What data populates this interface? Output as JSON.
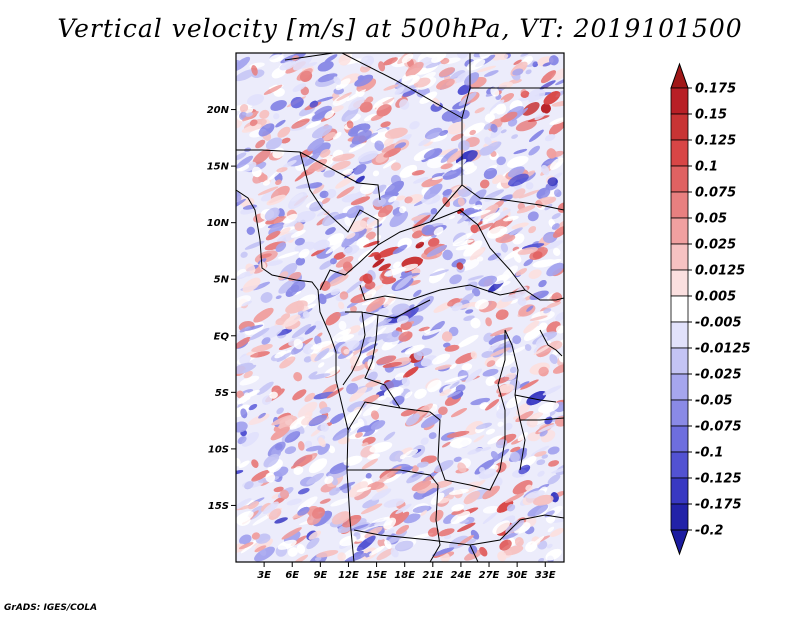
{
  "title": "Vertical velocity [m/s] at 500hPa, VT: 2019101500",
  "credit": "GrADS: IGES/COLA",
  "map": {
    "lon_range": [
      0,
      35
    ],
    "lat_range": [
      -20,
      25
    ],
    "lat_ticks": [
      {
        "lat": 20,
        "label": "20N"
      },
      {
        "lat": 15,
        "label": "15N"
      },
      {
        "lat": 10,
        "label": "10N"
      },
      {
        "lat": 5,
        "label": "5N"
      },
      {
        "lat": 0,
        "label": "EQ"
      },
      {
        "lat": -5,
        "label": "5S"
      },
      {
        "lat": -10,
        "label": "10S"
      },
      {
        "lat": -15,
        "label": "15S"
      }
    ],
    "lon_ticks": [
      {
        "lon": 3,
        "label": "3E"
      },
      {
        "lon": 6,
        "label": "6E"
      },
      {
        "lon": 9,
        "label": "9E"
      },
      {
        "lon": 12,
        "label": "12E"
      },
      {
        "lon": 15,
        "label": "15E"
      },
      {
        "lon": 18,
        "label": "18E"
      },
      {
        "lon": 21,
        "label": "21E"
      },
      {
        "lon": 24,
        "label": "24E"
      },
      {
        "lon": 27,
        "label": "27E"
      },
      {
        "lon": 30,
        "label": "30E"
      },
      {
        "lon": 33,
        "label": "33E"
      }
    ]
  },
  "colorbar": {
    "levels": [
      {
        "label": "0.175",
        "color": "#a8141a"
      },
      {
        "label": "0.15",
        "color": "#b82026"
      },
      {
        "label": "0.125",
        "color": "#c83434"
      },
      {
        "label": "0.1",
        "color": "#d84646"
      },
      {
        "label": "0.075",
        "color": "#e06262"
      },
      {
        "label": "0.05",
        "color": "#e88080"
      },
      {
        "label": "0.025",
        "color": "#f0a0a0"
      },
      {
        "label": "0.0125",
        "color": "#f6c2c2"
      },
      {
        "label": "0.005",
        "color": "#fbe0e0"
      },
      {
        "label": "-0.005",
        "color": "#ffffff"
      },
      {
        "label": "-0.0125",
        "color": "#e2e2fb"
      },
      {
        "label": "-0.025",
        "color": "#c4c4f4"
      },
      {
        "label": "-0.05",
        "color": "#a6a6ee"
      },
      {
        "label": "-0.075",
        "color": "#8a8ae6"
      },
      {
        "label": "-0.1",
        "color": "#6e6ede"
      },
      {
        "label": "-0.125",
        "color": "#5252d2"
      },
      {
        "label": "-0.175",
        "color": "#3838c2"
      },
      {
        "label": "-0.2",
        "color": "#2222a8"
      }
    ],
    "top_arrow_color": "#a01818",
    "bottom_arrow_color": "#1c1ca0"
  }
}
